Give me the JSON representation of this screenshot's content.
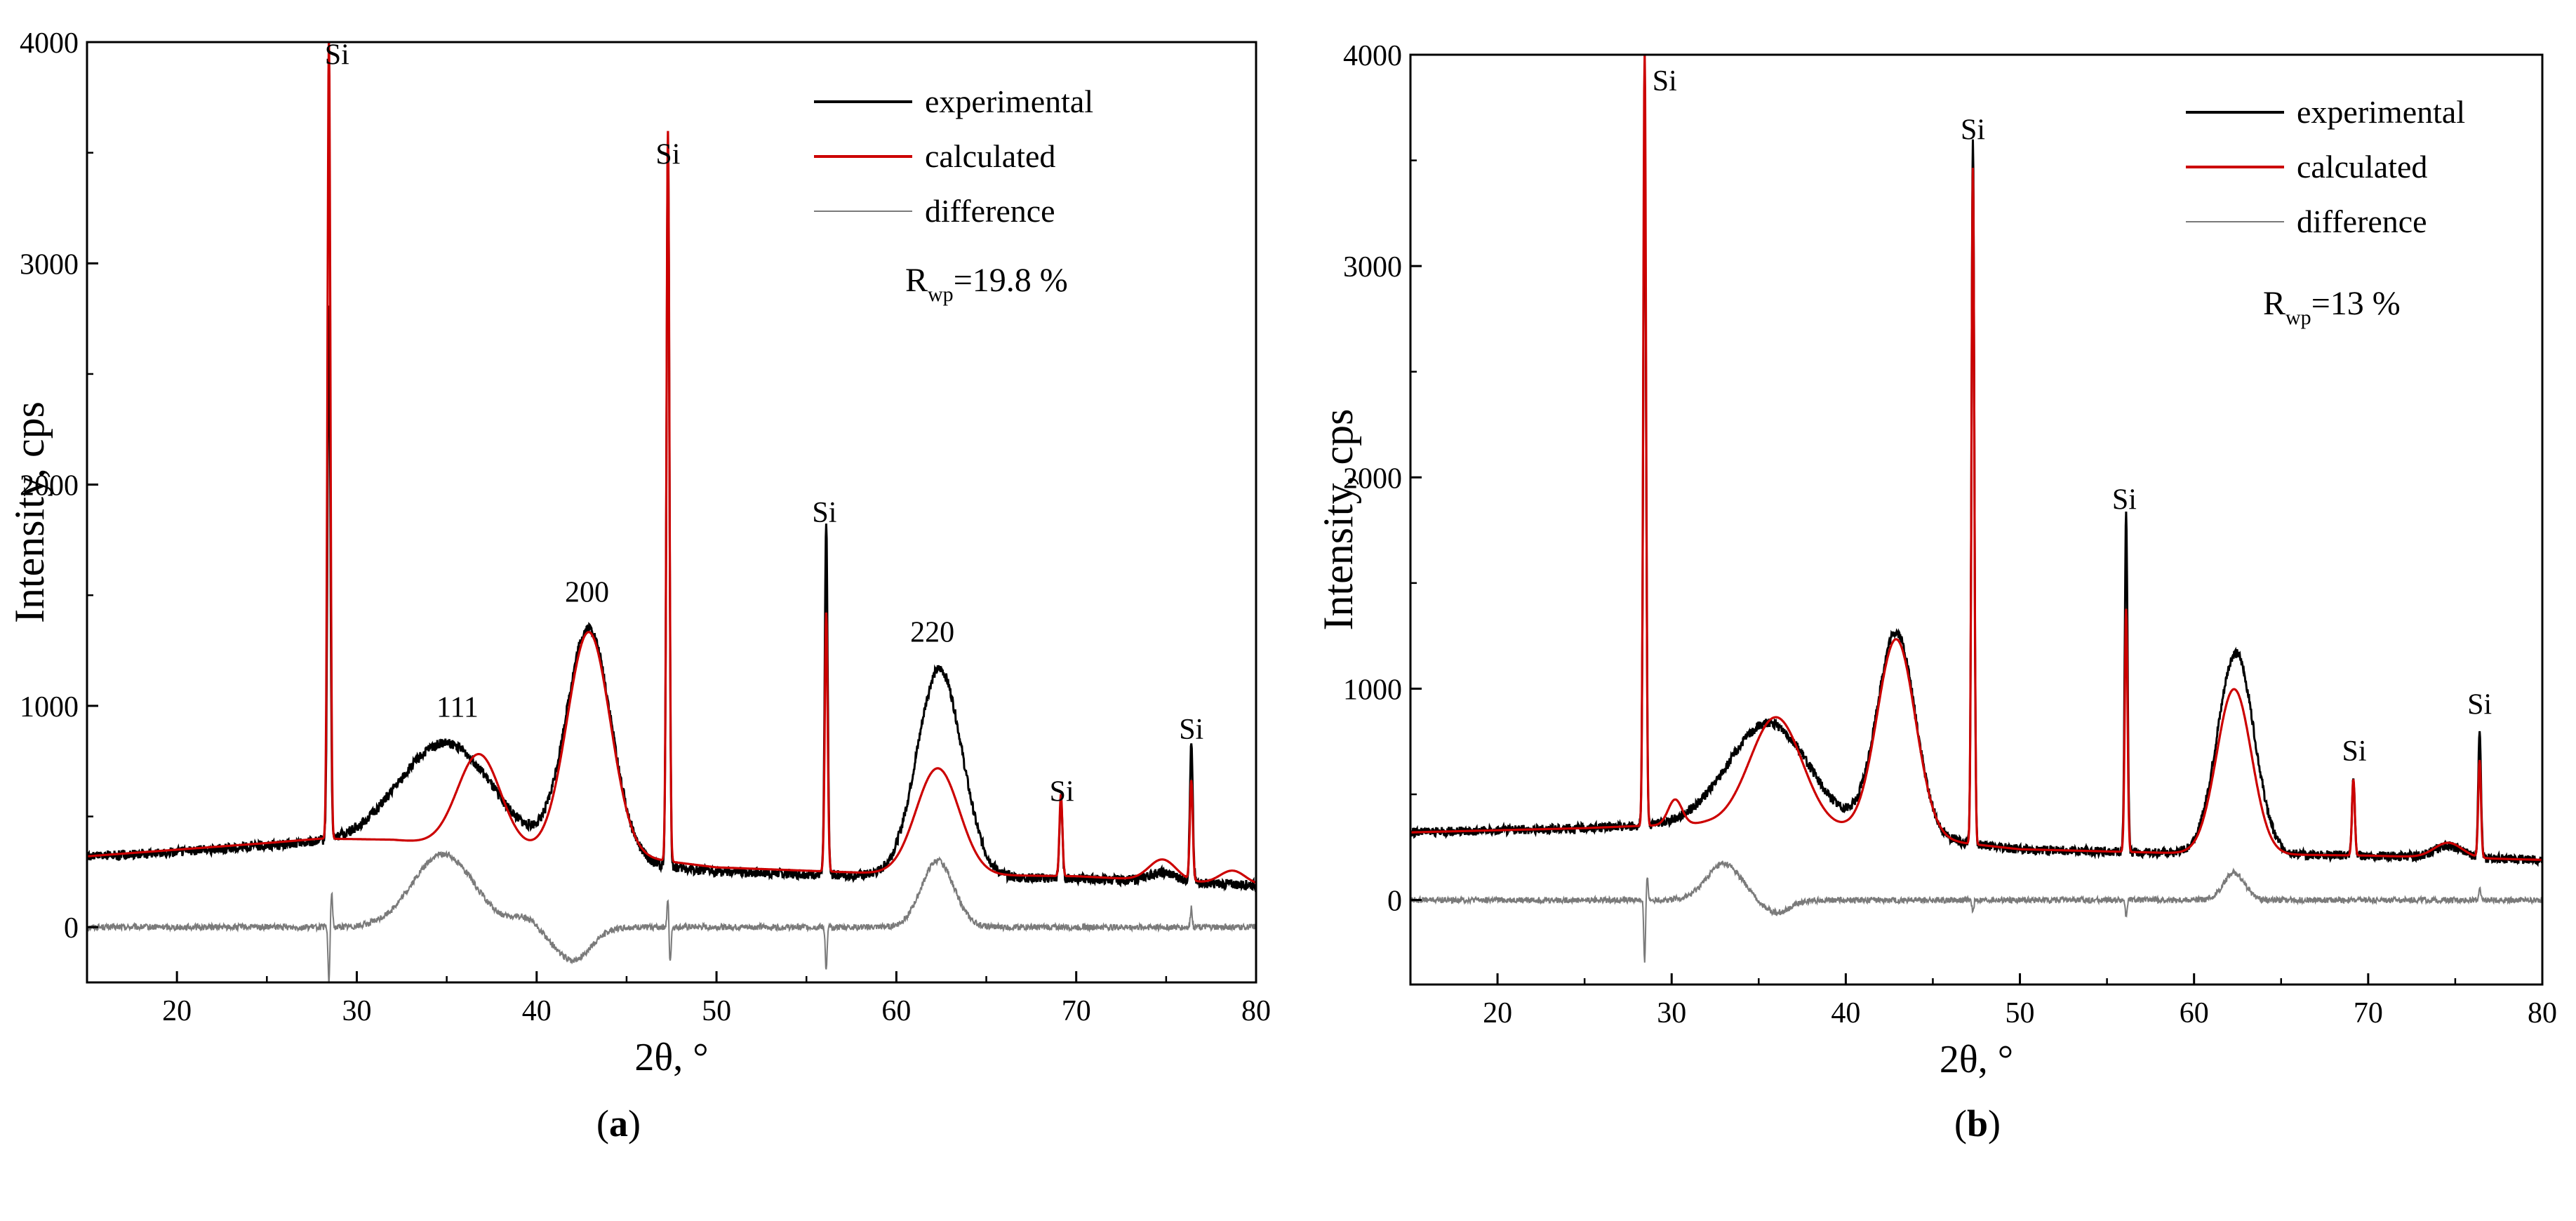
{
  "captions": {
    "a": "a",
    "b": "b"
  },
  "colors": {
    "experimental": "#000000",
    "calculated": "#cc0000",
    "difference": "#7a7a7a",
    "axis": "#000000"
  },
  "chart_data": [
    {
      "panel": "a",
      "type": "line",
      "xlabel": "2θ, °",
      "ylabel": "Intensity, cps",
      "xlim": [
        15,
        80
      ],
      "ylim": [
        -250,
        4000
      ],
      "xticks": [
        20,
        30,
        40,
        50,
        60,
        70,
        80
      ],
      "yticks": [
        0,
        1000,
        2000,
        3000,
        4000
      ],
      "grid": false,
      "legend": {
        "placement": "top-right",
        "entries": [
          "experimental",
          "calculated",
          "difference"
        ]
      },
      "rwp": {
        "label": "R",
        "sub": "wp",
        "value": "=19.8 %"
      },
      "annotations": [
        {
          "text": "Si",
          "x": 28.9,
          "y": 3900
        },
        {
          "text": "Si",
          "x": 47.3,
          "y": 3450
        },
        {
          "text": "Si",
          "x": 56.0,
          "y": 1830
        },
        {
          "text": "Si",
          "x": 69.2,
          "y": 570
        },
        {
          "text": "Si",
          "x": 76.4,
          "y": 850
        },
        {
          "text": "111",
          "x": 35.6,
          "y": 950
        },
        {
          "text": "200",
          "x": 42.8,
          "y": 1470
        },
        {
          "text": "220",
          "x": 62.0,
          "y": 1290
        }
      ],
      "series": [
        {
          "name": "experimental",
          "background": [
            [
              15,
              320
            ],
            [
              20,
              340
            ],
            [
              25,
              370
            ],
            [
              28,
              380
            ],
            [
              32,
              380
            ],
            [
              40,
              330
            ],
            [
              50,
              250
            ],
            [
              60,
              230
            ],
            [
              70,
              220
            ],
            [
              80,
              190
            ]
          ],
          "peaks": [
            [
              28.45,
              2400,
              0.08
            ],
            [
              35.0,
              470,
              2.6
            ],
            [
              42.9,
              1040,
              1.25
            ],
            [
              47.3,
              3300,
              0.08
            ],
            [
              56.1,
              1580,
              0.08
            ],
            [
              62.4,
              940,
              1.25
            ],
            [
              69.15,
              370,
              0.08
            ],
            [
              76.4,
              620,
              0.08
            ],
            [
              74.8,
              40,
              0.8
            ]
          ],
          "noise": 22
        },
        {
          "name": "calculated",
          "background": [
            [
              15,
              320
            ],
            [
              20,
              350
            ],
            [
              25,
              380
            ],
            [
              28,
              400
            ],
            [
              32,
              395
            ],
            [
              40,
              340
            ],
            [
              47,
              300
            ],
            [
              50,
              270
            ],
            [
              60,
              240
            ],
            [
              70,
              230
            ],
            [
              80,
              190
            ]
          ],
          "peaks": [
            [
              28.45,
              3620,
              0.08
            ],
            [
              36.8,
              420,
              1.2
            ],
            [
              42.9,
              1010,
              1.2
            ],
            [
              47.3,
              3300,
              0.08
            ],
            [
              56.1,
              1170,
              0.08
            ],
            [
              62.3,
              480,
              1.2
            ],
            [
              69.15,
              370,
              0.08
            ],
            [
              76.4,
              450,
              0.08
            ],
            [
              74.8,
              95,
              0.75
            ],
            [
              78.7,
              60,
              0.7
            ]
          ],
          "noise": 0
        },
        {
          "name": "difference",
          "background": [
            [
              15,
              0
            ],
            [
              80,
              0
            ]
          ],
          "peaks": [
            [
              34.8,
              330,
              1.7
            ],
            [
              42.0,
              -150,
              1.0
            ],
            [
              39.3,
              40,
              0.6
            ],
            [
              62.3,
              300,
              0.9
            ],
            [
              28.45,
              -250,
              0.05
            ],
            [
              28.6,
              160,
              0.05
            ],
            [
              47.3,
              130,
              0.05
            ],
            [
              47.42,
              -170,
              0.05
            ],
            [
              56.1,
              -200,
              0.05
            ],
            [
              76.4,
              90,
              0.05
            ]
          ],
          "noise": 14
        }
      ]
    },
    {
      "panel": "b",
      "type": "line",
      "xlabel": "2θ, °",
      "ylabel": "Intensity, cps",
      "xlim": [
        15,
        80
      ],
      "ylim": [
        -400,
        4000
      ],
      "xticks": [
        20,
        30,
        40,
        50,
        60,
        70,
        80
      ],
      "yticks": [
        0,
        1000,
        2000,
        3000,
        4000
      ],
      "grid": false,
      "legend": {
        "placement": "top-right",
        "entries": [
          "experimental",
          "calculated",
          "difference"
        ]
      },
      "rwp": {
        "label": "R",
        "sub": "wp",
        "value": "=13 %"
      },
      "annotations": [
        {
          "text": "Si",
          "x": 29.6,
          "y": 3830
        },
        {
          "text": "Si",
          "x": 47.3,
          "y": 3600
        },
        {
          "text": "Si",
          "x": 56.0,
          "y": 1850
        },
        {
          "text": "Si",
          "x": 69.2,
          "y": 660
        },
        {
          "text": "Si",
          "x": 76.4,
          "y": 880
        }
      ],
      "series": [
        {
          "name": "experimental",
          "background": [
            [
              15,
              320
            ],
            [
              20,
              330
            ],
            [
              25,
              340
            ],
            [
              28,
              350
            ],
            [
              32,
              360
            ],
            [
              40,
              330
            ],
            [
              50,
              240
            ],
            [
              60,
              220
            ],
            [
              70,
              210
            ],
            [
              80,
              190
            ]
          ],
          "peaks": [
            [
              28.45,
              3380,
              0.08
            ],
            [
              35.6,
              490,
              2.3
            ],
            [
              42.9,
              960,
              1.1
            ],
            [
              47.3,
              3340,
              0.08
            ],
            [
              56.1,
              1600,
              0.08
            ],
            [
              62.4,
              950,
              1.05
            ],
            [
              69.15,
              360,
              0.08
            ],
            [
              76.4,
              610,
              0.08
            ],
            [
              74.6,
              55,
              0.8
            ]
          ],
          "noise": 22
        },
        {
          "name": "calculated",
          "background": [
            [
              15,
              320
            ],
            [
              20,
              330
            ],
            [
              25,
              340
            ],
            [
              28,
              350
            ],
            [
              32,
              360
            ],
            [
              40,
              330
            ],
            [
              50,
              240
            ],
            [
              60,
              220
            ],
            [
              70,
              210
            ],
            [
              80,
              190
            ]
          ],
          "peaks": [
            [
              28.45,
              3650,
              0.08
            ],
            [
              30.2,
              120,
              0.4
            ],
            [
              36.0,
              520,
              1.5
            ],
            [
              42.9,
              930,
              1.1
            ],
            [
              47.3,
              3200,
              0.08
            ],
            [
              56.1,
              1150,
              0.08
            ],
            [
              62.3,
              780,
              1.0
            ],
            [
              69.15,
              360,
              0.08
            ],
            [
              76.4,
              460,
              0.08
            ],
            [
              74.6,
              70,
              0.8
            ]
          ],
          "noise": 0
        },
        {
          "name": "difference",
          "background": [
            [
              15,
              0
            ],
            [
              80,
              0
            ]
          ],
          "peaks": [
            [
              33.0,
              170,
              1.0
            ],
            [
              36.0,
              -60,
              0.8
            ],
            [
              62.3,
              130,
              0.6
            ],
            [
              28.45,
              -300,
              0.05
            ],
            [
              28.6,
              120,
              0.05
            ],
            [
              47.3,
              -60,
              0.05
            ],
            [
              56.1,
              -80,
              0.05
            ],
            [
              76.4,
              60,
              0.05
            ]
          ],
          "noise": 14
        }
      ]
    }
  ]
}
